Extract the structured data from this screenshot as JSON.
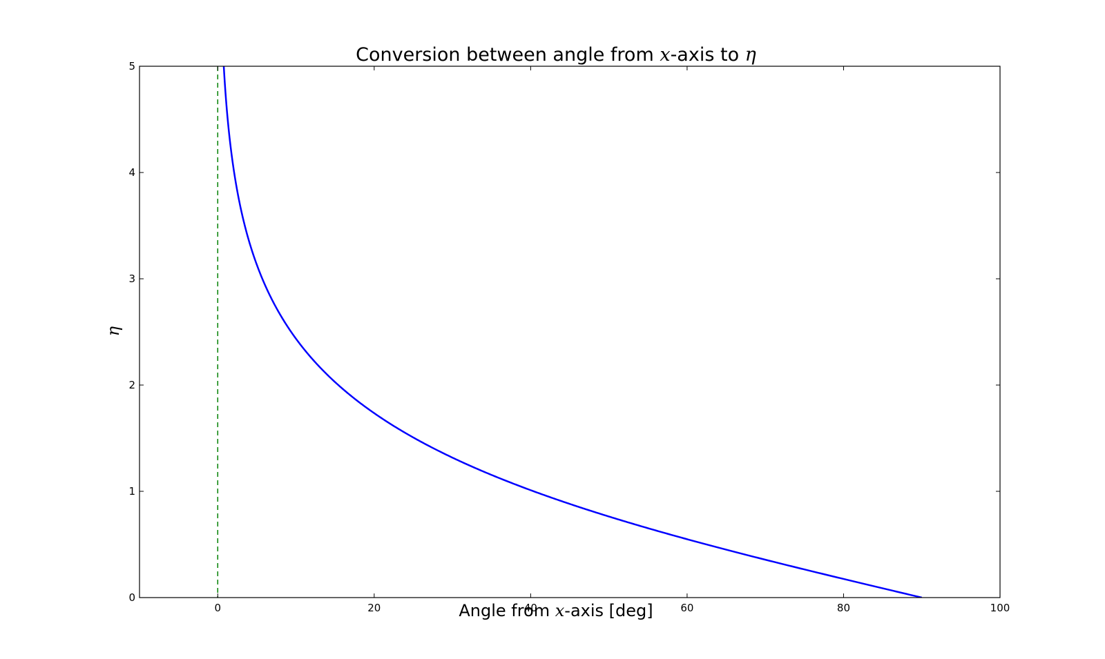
{
  "chart_data": {
    "type": "line",
    "title": {
      "prefix": "Conversion between angle from ",
      "var1": "x",
      "middle": "-axis to ",
      "var2": "η"
    },
    "xlabel": {
      "prefix": "Angle from ",
      "var": "x",
      "suffix": "-axis [deg]"
    },
    "ylabel": "η",
    "xlim": [
      -10,
      100
    ],
    "ylim": [
      0,
      5
    ],
    "xticks": [
      0,
      20,
      40,
      60,
      80,
      100
    ],
    "yticks": [
      0,
      1,
      2,
      3,
      4,
      5
    ],
    "grid": false,
    "series": [
      {
        "function": "eta = -ln(tan(theta/2)), theta = angle in degrees",
        "x_range": [
          0.77,
          90
        ],
        "samples": [
          [
            1,
            4.74
          ],
          [
            2,
            4.05
          ],
          [
            5,
            3.13
          ],
          [
            10,
            2.44
          ],
          [
            20,
            1.74
          ],
          [
            30,
            1.32
          ],
          [
            40,
            1.01
          ],
          [
            50,
            0.76
          ],
          [
            60,
            0.55
          ],
          [
            70,
            0.36
          ],
          [
            80,
            0.18
          ],
          [
            90,
            0.0
          ]
        ],
        "color": "#0000ff"
      },
      {
        "type": "vline",
        "x": 0,
        "style": "dashed",
        "color": "#008000"
      }
    ]
  }
}
